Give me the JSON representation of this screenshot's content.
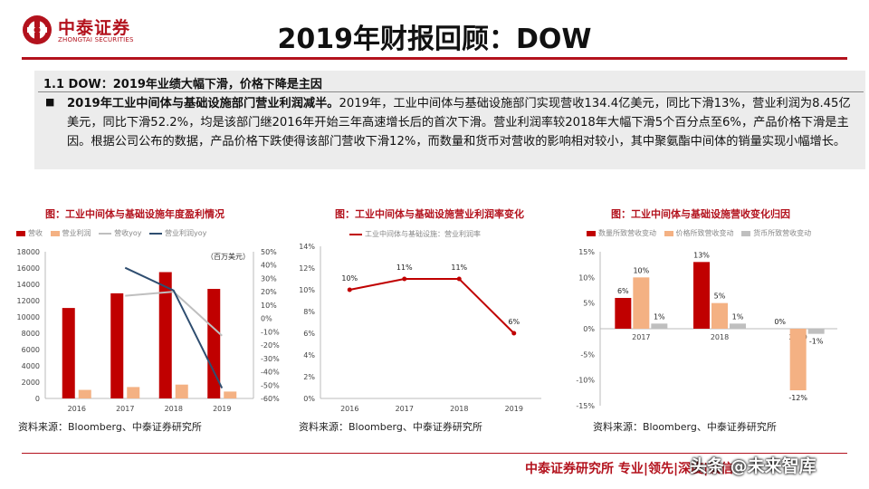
{
  "header": {
    "logo_cn": "中泰证券",
    "logo_en": "ZHONGTAI SECURITIES",
    "title": "2019年财报回顾：DOW"
  },
  "summary": {
    "section_title": "1.1 DOW：2019年业绩大幅下滑，价格下降是主因",
    "bullet_symbol": "■",
    "lead": "2019年工业中间体与基础设施部门营业利润减半。",
    "body": "2019年，工业中间体与基础设施部门实现营收134.4亿美元，同比下滑13%，营业利润为8.45亿美元，同比下滑52.2%，均是该部门继2016年开始三年高速增长后的首次下滑。营业利润率较2018年大幅下滑5个百分点至6%，产品价格下滑是主因。根据公司公布的数据，产品价格下跌使得该部门营收下滑12%，而数量和货币对营收的影响相对较小，其中聚氨酯中间体的销量实现小幅增长。"
  },
  "charts": [
    {
      "title": "图：工业中间体与基础设施年度盈利情况",
      "legend": [
        "营收",
        "营业利润",
        "营收yoy",
        "营业利润yoy"
      ],
      "unit": "（百万美元）",
      "source": "资料来源：Bloomberg、中泰证券研究所"
    },
    {
      "title": "图：工业中间体与基础设施营业利润率变化",
      "legend": [
        "工业中间体与基础设施：营业利润率"
      ],
      "source": "资料来源：Bloomberg、中泰证券研究所"
    },
    {
      "title": "图：工业中间体与基础设施营收变化归因",
      "legend": [
        "数量所致营收变动",
        "价格所致营收变动",
        "货币所致营收变动"
      ],
      "source": "资料来源：Bloomberg、中泰证券研究所"
    }
  ],
  "colors": {
    "red": "#c00000",
    "peach": "#f4b183",
    "gray": "#bfbfbf",
    "blue": "#2f4e70",
    "brand": "#b3121d"
  },
  "chart_data": [
    {
      "type": "bar",
      "categories": [
        "2016",
        "2017",
        "2018",
        "2019"
      ],
      "series": [
        {
          "name": "营收",
          "values": [
            11100,
            12900,
            15500,
            13440
          ],
          "color": "#c00000",
          "kind": "bar",
          "axis": "left"
        },
        {
          "name": "营业利润",
          "values": [
            1050,
            1400,
            1700,
            845
          ],
          "color": "#f4b183",
          "kind": "bar",
          "axis": "left"
        },
        {
          "name": "营收yoy",
          "values": [
            null,
            17,
            20,
            -13
          ],
          "color": "#bfbfbf",
          "kind": "line",
          "axis": "right"
        },
        {
          "name": "营业利润yoy",
          "values": [
            null,
            38,
            21,
            -52.2
          ],
          "color": "#2f4e70",
          "kind": "line",
          "axis": "right"
        }
      ],
      "y_ticks": [
        "0",
        "2000",
        "4000",
        "6000",
        "8000",
        "10000",
        "12000",
        "14000",
        "16000",
        "18000"
      ],
      "y2_ticks": [
        "-60%",
        "-50%",
        "-40%",
        "-30%",
        "-20%",
        "-10%",
        "0%",
        "10%",
        "20%",
        "30%",
        "40%",
        "50%"
      ],
      "ylim": [
        0,
        18000
      ],
      "y2lim": [
        -60,
        50
      ]
    },
    {
      "type": "line",
      "categories": [
        "2016",
        "2017",
        "2018",
        "2019"
      ],
      "series": [
        {
          "name": "工业中间体与基础设施：营业利润率",
          "values": [
            10,
            11,
            11,
            6
          ],
          "labels": [
            "10%",
            "11%",
            "11%",
            "6%"
          ],
          "color": "#c00000"
        }
      ],
      "y_ticks": [
        "0%",
        "2%",
        "4%",
        "6%",
        "8%",
        "10%",
        "12%",
        "14%"
      ],
      "ylim": [
        0,
        14
      ]
    },
    {
      "type": "bar",
      "categories": [
        "2017",
        "2018",
        "2019"
      ],
      "series": [
        {
          "name": "数量所致营收变动",
          "values": [
            6,
            13,
            0
          ],
          "labels": [
            "6%",
            "13%",
            "0%"
          ],
          "color": "#c00000"
        },
        {
          "name": "价格所致营收变动",
          "values": [
            10,
            5,
            -12
          ],
          "labels": [
            "10%",
            "5%",
            "-12%"
          ],
          "color": "#f4b183"
        },
        {
          "name": "货币所致营收变动",
          "values": [
            1,
            1,
            -1
          ],
          "labels": [
            "1%",
            "1%",
            "-1%"
          ],
          "color": "#bfbfbf"
        }
      ],
      "y_ticks": [
        "-15%",
        "-10%",
        "-5%",
        "0%",
        "5%",
        "10%",
        "15%"
      ],
      "ylim": [
        -15,
        15
      ]
    }
  ],
  "footer": {
    "text": "中泰证券研究所 专业|领先|深度|诚信",
    "watermark": "头条 @未来智库"
  }
}
